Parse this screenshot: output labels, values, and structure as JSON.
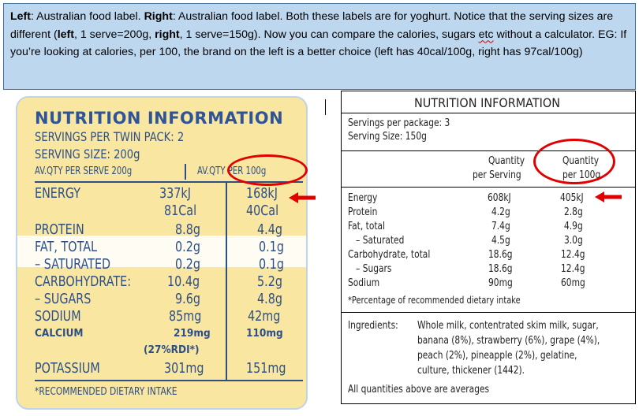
{
  "caption": {
    "left_prefix": "Left",
    "left_text": ": Australian food label. ",
    "right_prefix": "Right",
    "right_text": ": Australian food label. Both these labels are for yoghurt. Notice that the serving sizes are different (",
    "left_word": "left",
    "mid1": ", 1 serve=200g, ",
    "right_word": "right",
    "mid2": ", 1 serve=150g). Now you can compare the calories, sugars ",
    "etc": "etc",
    "tail": " without a calculator. EG: If you’re looking at calories, per 100, the brand on the left is a better choice (left has 40cal/100g, right has 97cal/100g)"
  },
  "left_label": {
    "title": "NUTRITION INFORMATION",
    "servings": "SERVINGS PER TWIN PACK: 2",
    "serving_size": "SERVING SIZE: 200g",
    "col_serve": "AV.QTY PER SERVE 200g",
    "col_100": "AV.QTY PER 100g",
    "rows": [
      {
        "name": "ENERGY",
        "serve": "337kJ",
        "per100": "168kJ"
      },
      {
        "name": "",
        "serve": "81Cal",
        "per100": "40Cal"
      },
      {
        "name": "PROTEIN",
        "serve": "8.8g",
        "per100": "4.4g"
      },
      {
        "name": "FAT, TOTAL",
        "serve": "0.2g",
        "per100": "0.1g"
      },
      {
        "name": "– SATURATED",
        "serve": "0.2g",
        "per100": "0.1g"
      },
      {
        "name": "CARBOHYDRATE:",
        "serve": "10.4g",
        "per100": "5.2g"
      },
      {
        "name": "– SUGARS",
        "serve": "9.6g",
        "per100": "4.8g"
      },
      {
        "name": "SODIUM",
        "serve": "85mg",
        "per100": "42mg"
      },
      {
        "name": "CALCIUM",
        "serve": "219mg",
        "per100": "110mg"
      },
      {
        "name": "",
        "serve": "(27%RDI*)",
        "per100": ""
      },
      {
        "name": "POTASSIUM",
        "serve": "301mg",
        "per100": "151mg"
      }
    ],
    "footnote": "*RECOMMENDED DIETARY INTAKE"
  },
  "right_label": {
    "title": "NUTRITION INFORMATION",
    "servings": "Servings per package: 3",
    "serving_size": "Serving Size: 150g",
    "col_serve_1": "Quantity",
    "col_serve_2": "per Serving",
    "col_100_1": "Quantity",
    "col_100_2": "per 100g",
    "rows": [
      {
        "name": "Energy",
        "serve": "608kJ",
        "per100": "405kJ"
      },
      {
        "name": "Protein",
        "serve": "4.2g",
        "per100": "2.8g"
      },
      {
        "name": "Fat, total",
        "serve": "7.4g",
        "per100": "4.9g"
      },
      {
        "name": "– Saturated",
        "serve": "4.5g",
        "per100": "3.0g"
      },
      {
        "name": "Carbohydrate, total",
        "serve": "18.6g",
        "per100": "12.4g"
      },
      {
        "name": "– Sugars",
        "serve": "18.6g",
        "per100": "12.4g"
      },
      {
        "name": "Sodium",
        "serve": "90mg",
        "per100": "60mg"
      }
    ],
    "footnote": "*Percentage of recommended dietary intake",
    "ingredients_label": "Ingredients:",
    "ingredients_lines": [
      "Whole milk, contentrated skim milk, sugar,",
      "banana (8%), strawberry (6%), grape (4%),",
      "peach (2%), pineapple (2%), gelatine,",
      "culture, thickener (1442)."
    ],
    "averages": "All quantities above are averages"
  },
  "annotation_color": "#e00000"
}
